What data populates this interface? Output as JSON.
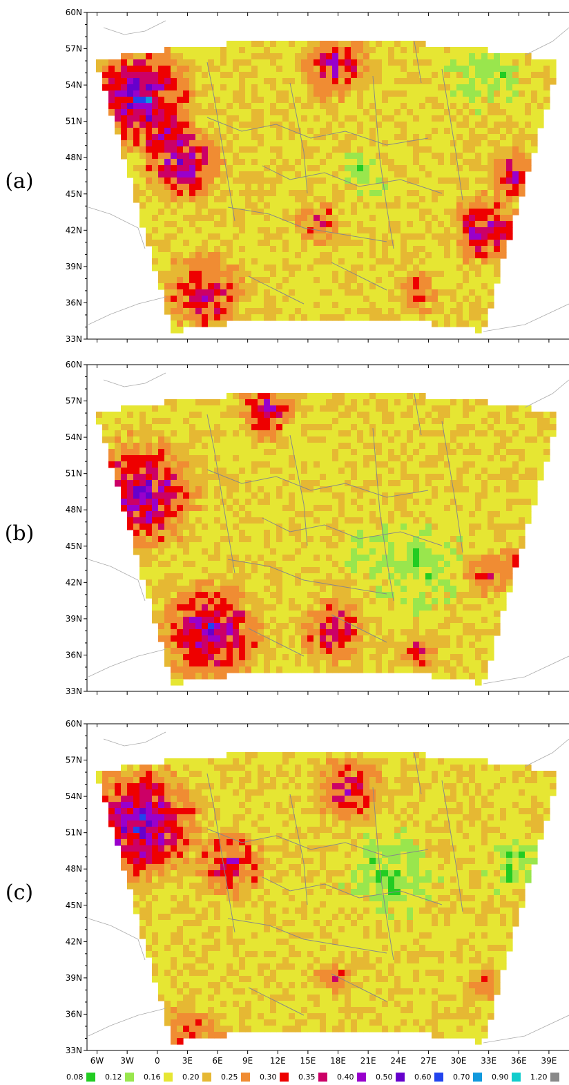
{
  "panels": [
    {
      "id": "a",
      "label": "(a)"
    },
    {
      "id": "b",
      "label": "(b)"
    },
    {
      "id": "c",
      "label": "(c)"
    }
  ],
  "lat_labels": [
    "60N",
    "57N",
    "54N",
    "51N",
    "48N",
    "45N",
    "42N",
    "39N",
    "36N",
    "33N"
  ],
  "lon_labels": [
    "6W",
    "3W",
    "0",
    "3E",
    "6E",
    "9E",
    "12E",
    "15E",
    "18E",
    "21E",
    "24E",
    "27E",
    "30E",
    "33E",
    "36E",
    "39E"
  ],
  "legend": [
    {
      "label": "0.08",
      "color": "#22cc22"
    },
    {
      "label": "0.12",
      "color": "#99e64d"
    },
    {
      "label": "0.16",
      "color": "#e6e633"
    },
    {
      "label": "0.20",
      "color": "#e6b833"
    },
    {
      "label": "0.25",
      "color": "#f08c33"
    },
    {
      "label": "0.30",
      "color": "#ee0000"
    },
    {
      "label": "0.35",
      "color": "#cc0066"
    },
    {
      "label": "0.40",
      "color": "#9900cc"
    },
    {
      "label": "0.50",
      "color": "#6600cc"
    },
    {
      "label": "0.60",
      "color": "#2244ee"
    },
    {
      "label": "0.70",
      "color": "#1199dd"
    },
    {
      "label": "0.90",
      "color": "#11cccc"
    },
    {
      "label": "1.20",
      "color": "#888888"
    }
  ],
  "domain_outline_color": "#aaaaaa",
  "country_border_color": "#888888"
}
